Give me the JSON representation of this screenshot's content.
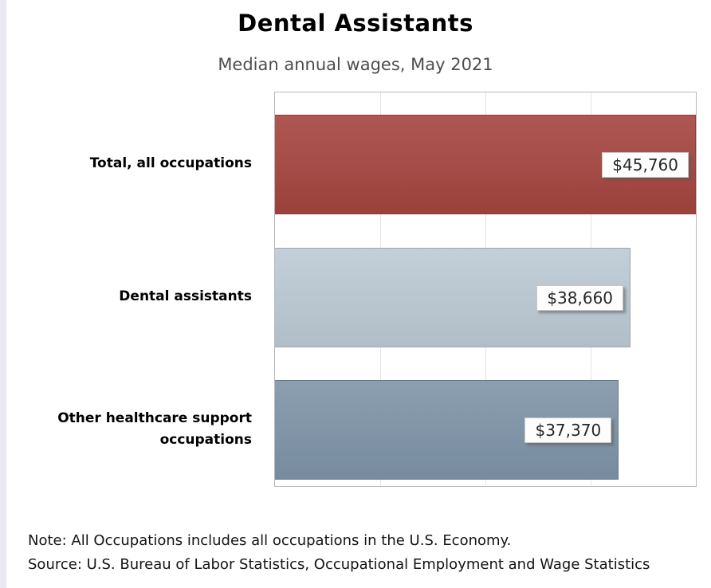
{
  "chart_data": {
    "type": "bar",
    "orientation": "horizontal",
    "title": "Dental Assistants",
    "subtitle": "Median annual wages, May 2021",
    "categories": [
      "Total, all occupations",
      "Dental assistants",
      "Other healthcare support occupations"
    ],
    "values": [
      45760,
      38660,
      37370
    ],
    "value_labels": [
      "$45,760",
      "$38,660",
      "$37,370"
    ],
    "bar_colors": [
      "#a5453f",
      "#bcc9d4",
      "#7e94a8"
    ],
    "bar_border_colors": [
      "#8f3b37",
      "#99a6b0",
      "#65788a"
    ],
    "xlim": [
      0,
      45760
    ],
    "grid": true,
    "gridline_positions_pct": [
      25,
      50,
      75
    ],
    "legend": false
  },
  "footnotes": {
    "note": "Note: All Occupations includes all occupations in the U.S. Economy.",
    "source": "Source: U.S. Bureau of Labor Statistics, Occupational Employment and Wage Statistics"
  }
}
